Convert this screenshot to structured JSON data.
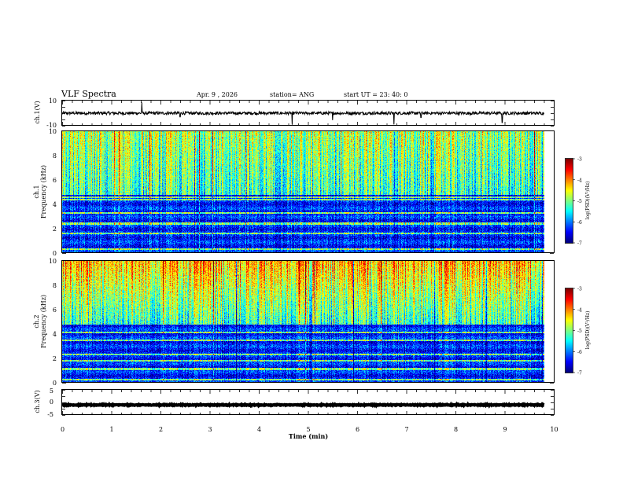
{
  "chart_data": {
    "type": "heatmap",
    "title": "VLF Spectra",
    "date": "Apr. 9  , 2026",
    "station": "station= ANG",
    "start_ut": "start  UT  =   23: 40: 0",
    "xlabel": "Time  (min)",
    "xlim": [
      0,
      10
    ],
    "xticks": [
      "0",
      "1",
      "2",
      "3",
      "4",
      "5",
      "6",
      "7",
      "8",
      "9",
      "10"
    ],
    "panels": [
      {
        "kind": "waveform",
        "ylabel": "ch.1(V)",
        "ylim": [
          -10,
          10
        ],
        "yticks": [
          "10",
          "-10"
        ],
        "baseline": 0,
        "noise": 1.2,
        "spikes": [
          {
            "t": 1.62,
            "v": 8.5
          },
          {
            "t": 4.68,
            "v": -9.2
          },
          {
            "t": 5.5,
            "v": -5.5
          },
          {
            "t": 6.75,
            "v": -9.0
          },
          {
            "t": 8.95,
            "v": -7.5
          },
          {
            "t": 2.4,
            "v": -3
          },
          {
            "t": 7.3,
            "v": -3.5
          }
        ]
      },
      {
        "kind": "spectrogram",
        "ylabel": "ch.1",
        "ylabel2": "Frequency  (kHz)",
        "ylim": [
          0,
          10
        ],
        "yticks": [
          "0",
          "2",
          "4",
          "6",
          "8",
          "10"
        ],
        "hot_bands": [
          4.4,
          4.6,
          3.3,
          2.4,
          1.6,
          0.3
        ]
      },
      {
        "kind": "spectrogram",
        "ylabel": "ch.2",
        "ylabel2": "Frequency  (kHz)",
        "ylim": [
          0,
          10
        ],
        "yticks": [
          "0",
          "2",
          "4",
          "6",
          "8",
          "10"
        ],
        "hot_bands": [
          4.1,
          3.5,
          2.3,
          1.8,
          1.1,
          0.2
        ]
      },
      {
        "kind": "waveform",
        "ylabel": "ch.3(V)",
        "ylim": [
          -5,
          5
        ],
        "yticks": [
          "5",
          "0",
          "-5"
        ],
        "baseline": -1,
        "noise": 0.15,
        "spikes": []
      }
    ],
    "colorbar": {
      "label": "log(PSD)(V²/Hz)",
      "range": [
        -7,
        -3
      ],
      "ticks": [
        "-3",
        "-4",
        "-5",
        "-6",
        "-7"
      ]
    },
    "colors": {
      "low": "#00007f",
      "mid1": "#0000ff",
      "mid2": "#00ffff",
      "mid3": "#ffff00",
      "high": "#ff0000",
      "high2": "#7f0000"
    }
  }
}
